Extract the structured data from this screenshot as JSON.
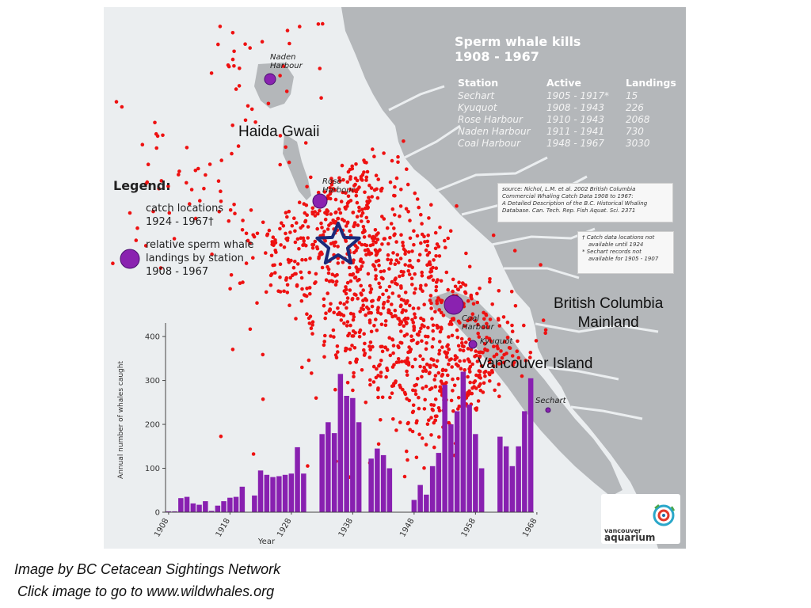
{
  "map": {
    "title_line1": "Sperm whale kills",
    "title_line2": "1908 - 1967",
    "stations_table": {
      "headers": [
        "Station",
        "Active",
        "Landings"
      ],
      "rows": [
        [
          "Sechart",
          "1905 - 1917*",
          "15"
        ],
        [
          "Kyuquot",
          "1908 - 1943",
          "226"
        ],
        [
          "Rose Harbour",
          "1910 - 1943",
          "2068"
        ],
        [
          "Naden Harbour",
          "1911 - 1941",
          "730"
        ],
        [
          "Coal Harbour",
          "1948 - 1967",
          "3030"
        ]
      ]
    },
    "source_note": {
      "line1": "source: Nichol, L.M. et al. 2002 British Columbia",
      "line2": "Commercial Whaling Catch Data 1908 to 1967:",
      "line3": "A Detailed Description of the B.C. Historical Whaling",
      "line4": "Database. Can. Tech. Rep. Fish Aquat. Sci. 2371"
    },
    "footnotes": {
      "line1": "† Catch data locations not",
      "line2": "available until 1924",
      "line3": "* Sechart records not",
      "line4": "available for 1905 - 1907"
    },
    "legend": {
      "title": "Legend:",
      "catch_line1": "catch locations",
      "catch_line2": "1924 - 1967†",
      "landings_line1": "relative sperm whale",
      "landings_line2": "landings by station",
      "landings_line3": "1908 - 1967"
    },
    "place_labels": {
      "naden_line1": "Naden",
      "naden_line2": "Harbour",
      "rose_line1": "Rose",
      "rose_line2": "Harbour",
      "coal_line1": "Coal",
      "coal_line2": "Harbour",
      "kyuquot": "Kyuquot",
      "sechart": "Sechart"
    },
    "region_labels": {
      "haida_gwaii": "Haida Gwaii",
      "bc_line1": "British Columbia",
      "bc_line2": "Mainland",
      "vancouver_island": "Vancouver Island"
    },
    "logo": {
      "line1": "vancouver",
      "line2": "aquarium"
    },
    "colors": {
      "land": "#b4b7ba",
      "sea": "#ebeef0",
      "catch_dot": "#ee1111",
      "station_fill": "#8a22b0",
      "bar": "#8820b0",
      "star": "#1b2a7a"
    }
  },
  "chart_data": {
    "type": "bar",
    "title": "",
    "xlabel": "Year",
    "ylabel": "Annual number of whales caught",
    "ylim": [
      0,
      420
    ],
    "yticks": [
      0,
      100,
      200,
      300,
      400
    ],
    "xtick_labels": [
      "1908",
      "1918",
      "1928",
      "1938",
      "1948",
      "1958",
      "1968"
    ],
    "x": [
      1908,
      1909,
      1910,
      1911,
      1912,
      1913,
      1914,
      1915,
      1916,
      1917,
      1918,
      1919,
      1920,
      1921,
      1922,
      1923,
      1924,
      1925,
      1926,
      1927,
      1928,
      1929,
      1930,
      1931,
      1932,
      1933,
      1934,
      1935,
      1936,
      1937,
      1938,
      1939,
      1940,
      1941,
      1942,
      1943,
      1944,
      1945,
      1946,
      1947,
      1948,
      1949,
      1950,
      1951,
      1952,
      1953,
      1954,
      1955,
      1956,
      1957,
      1958,
      1959,
      1960,
      1961,
      1962,
      1963,
      1964,
      1965,
      1966,
      1967
    ],
    "values": [
      2,
      2,
      32,
      35,
      20,
      17,
      25,
      3,
      15,
      25,
      33,
      35,
      58,
      0,
      38,
      95,
      85,
      80,
      82,
      85,
      88,
      148,
      88,
      0,
      0,
      178,
      205,
      180,
      315,
      265,
      260,
      205,
      0,
      122,
      145,
      130,
      100,
      0,
      0,
      0,
      28,
      62,
      40,
      105,
      135,
      290,
      200,
      230,
      320,
      245,
      178,
      100,
      0,
      0,
      172,
      150,
      105,
      150,
      230,
      305
    ]
  },
  "caption": {
    "line1": "Image by BC Cetacean Sightings Network",
    "line2": "Click image to go to www.wildwhales.org"
  }
}
